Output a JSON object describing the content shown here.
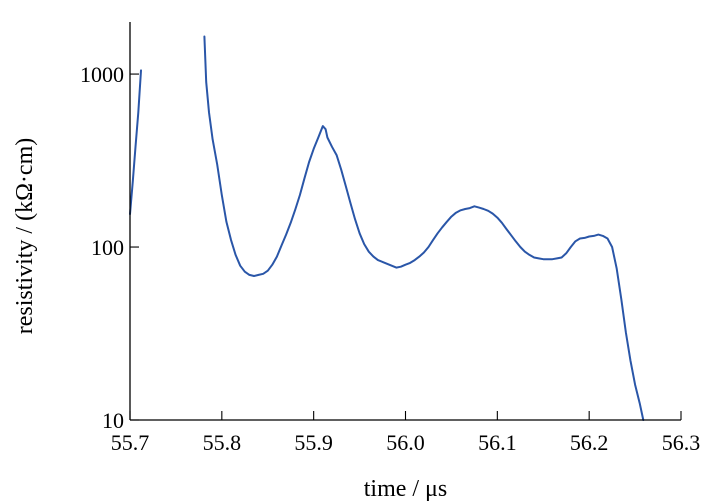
{
  "chart_data": {
    "type": "line",
    "title": "",
    "xlabel": "time / μs",
    "ylabel": "resistivity / (kΩ·cm)",
    "xlim": [
      55.7,
      56.3
    ],
    "ylim": [
      10,
      2000
    ],
    "yscale": "log",
    "grid": false,
    "legend": "none",
    "color": "#2a56a8",
    "xticks": [
      55.7,
      55.8,
      55.9,
      56.0,
      56.1,
      56.2,
      56.3
    ],
    "xtick_labels": [
      "55.7",
      "55.8",
      "55.9",
      "56.0",
      "56.1",
      "56.2",
      "56.3"
    ],
    "yticks": [
      10,
      100,
      1000
    ],
    "ytick_labels": [
      "10",
      "100",
      "1000"
    ],
    "segments": [
      {
        "x": [
          55.7,
          55.703,
          55.706,
          55.709,
          55.712
        ],
        "y": [
          155,
          240,
          380,
          600,
          1050
        ]
      },
      {
        "x": [
          55.781,
          55.783,
          55.786,
          55.79,
          55.795,
          55.8,
          55.805,
          55.81,
          55.815,
          55.82,
          55.825,
          55.83,
          55.835,
          55.84,
          55.845,
          55.85,
          55.855,
          55.86,
          55.865,
          55.87,
          55.875,
          55.88,
          55.885,
          55.89,
          55.895,
          55.9,
          55.905,
          55.91,
          55.913,
          55.915,
          55.92,
          55.925,
          55.93,
          55.935,
          55.94,
          55.945,
          55.95,
          55.955,
          55.96,
          55.965,
          55.97,
          55.975,
          55.98,
          55.985,
          55.99,
          55.995,
          56.0,
          56.005,
          56.01,
          56.015,
          56.02,
          56.025,
          56.03,
          56.035,
          56.04,
          56.045,
          56.05,
          56.055,
          56.06,
          56.065,
          56.07,
          56.075,
          56.08,
          56.085,
          56.09,
          56.095,
          56.1,
          56.105,
          56.11,
          56.115,
          56.12,
          56.125,
          56.13,
          56.135,
          56.14,
          56.145,
          56.15,
          56.155,
          56.16,
          56.165,
          56.17,
          56.175,
          56.18,
          56.185,
          56.19,
          56.195,
          56.2,
          56.205,
          56.21,
          56.215,
          56.22,
          56.225,
          56.23,
          56.235,
          56.24,
          56.245,
          56.25,
          56.255,
          56.259
        ],
        "y": [
          1650,
          900,
          600,
          420,
          300,
          200,
          140,
          110,
          90,
          78,
          72,
          69,
          68,
          69,
          70,
          73,
          79,
          88,
          102,
          118,
          138,
          165,
          200,
          250,
          310,
          370,
          430,
          500,
          480,
          430,
          380,
          340,
          280,
          225,
          180,
          145,
          120,
          104,
          94,
          88,
          84,
          82,
          80,
          78,
          76,
          77,
          79,
          81,
          84,
          88,
          93,
          100,
          110,
          120,
          130,
          140,
          150,
          158,
          163,
          166,
          168,
          172,
          169,
          166,
          162,
          156,
          148,
          138,
          127,
          117,
          108,
          100,
          94,
          90,
          87,
          86,
          85,
          85,
          85,
          86,
          87,
          92,
          100,
          108,
          112,
          113,
          115,
          116,
          118,
          116,
          112,
          100,
          75,
          50,
          32,
          22,
          16,
          12.5,
          10
        ]
      }
    ]
  }
}
